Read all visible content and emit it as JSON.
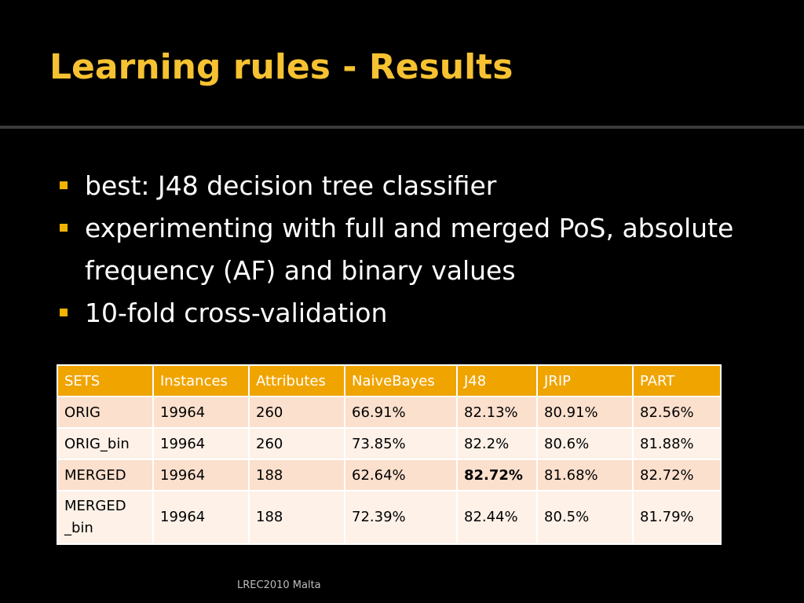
{
  "slide": {
    "title": "Learning rules - Results",
    "bullets": [
      "best: J48 decision tree classifier",
      "experimenting with full and merged PoS, absolute frequency (AF) and binary values",
      "10-fold cross-validation"
    ],
    "footer": "LREC2010 Malta"
  },
  "table": {
    "headers": [
      "SETS",
      "Instances",
      "Attributes",
      "NaiveBayes",
      "J48",
      "JRIP",
      "PART"
    ],
    "rows": [
      [
        "ORIG",
        "19964",
        "260",
        "66.91%",
        "82.13%",
        "80.91%",
        "82.56%"
      ],
      [
        "ORIG_bin",
        "19964",
        "260",
        "73.85%",
        "82.2%",
        "80.6%",
        "81.88%"
      ],
      [
        "MERGED",
        "19964",
        "188",
        "62.64%",
        "82.72%",
        "81.68%",
        "82.72%"
      ],
      [
        "MERGED _bin",
        "19964",
        "188",
        "72.39%",
        "82.44%",
        "80.5%",
        "81.79%"
      ]
    ],
    "bold_cell": {
      "row": 2,
      "col": 4
    }
  },
  "colors": {
    "title": "#f6c231",
    "bullet_marker": "#f0b400",
    "header_bg": "#f0a400",
    "row_odd_bg": "#fbe0cd",
    "row_even_bg": "#fdf1e8",
    "background": "#000000"
  }
}
